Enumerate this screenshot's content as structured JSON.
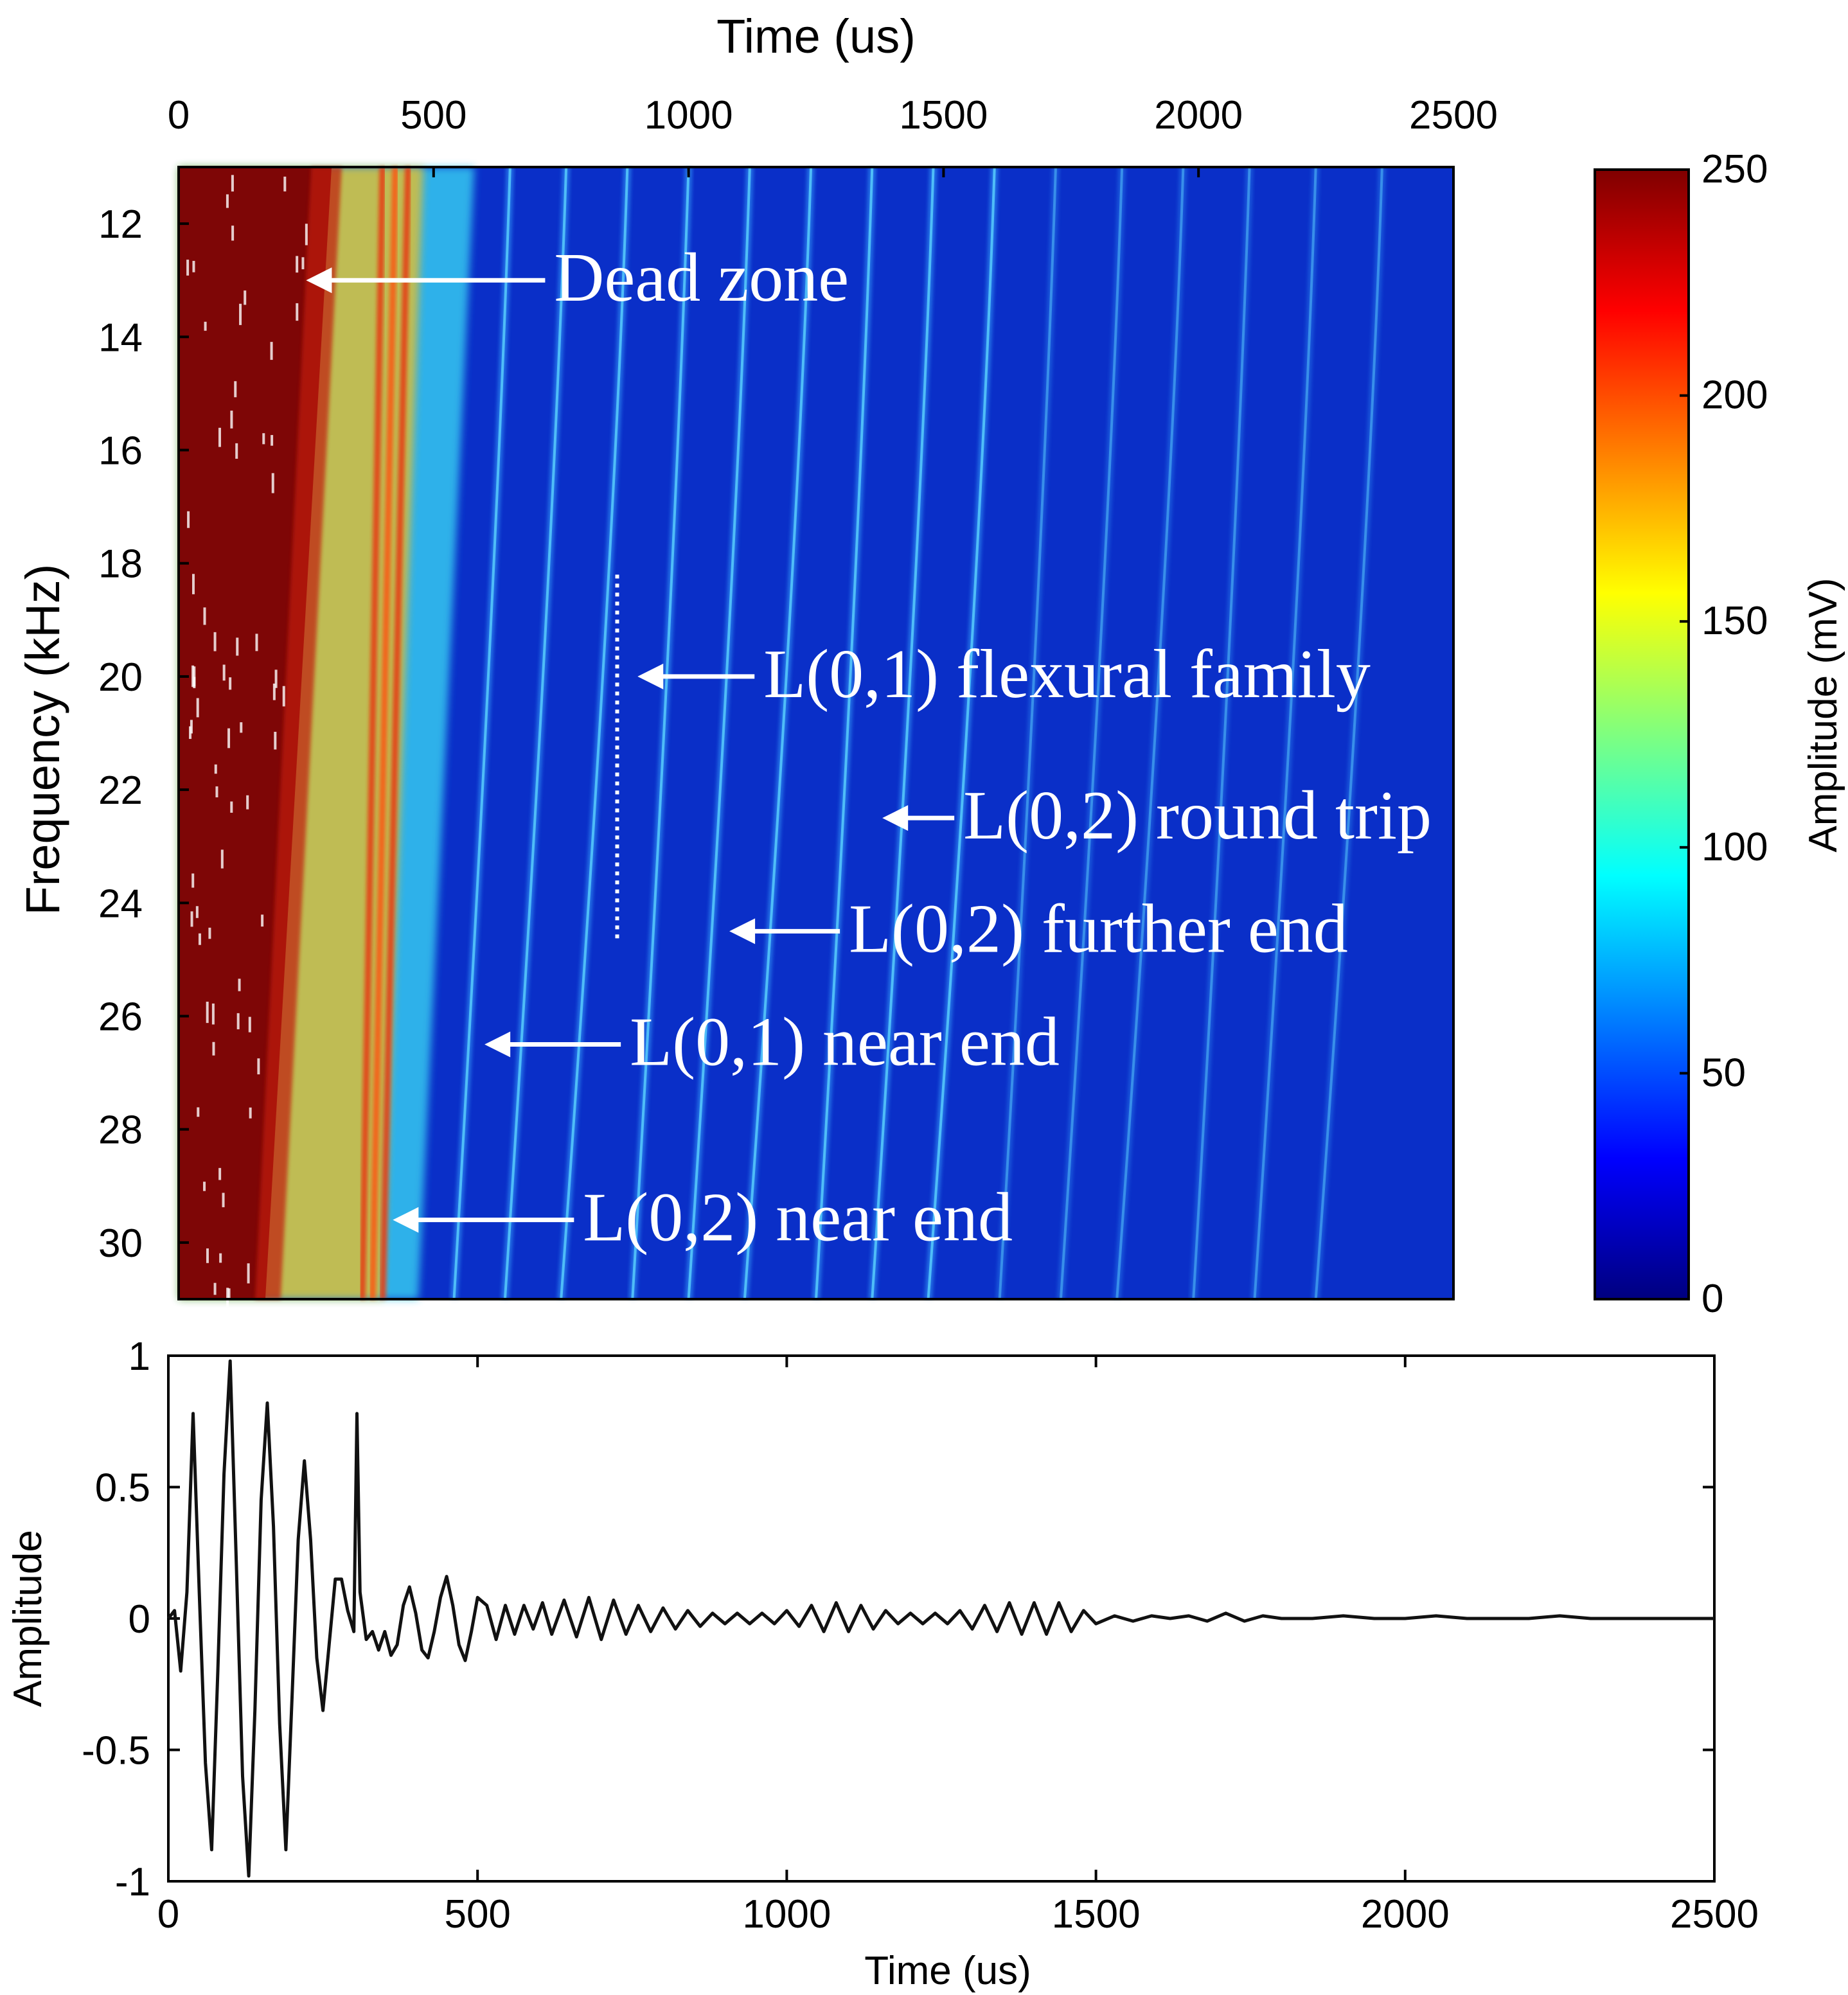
{
  "chart_data": [
    {
      "type": "heatmap",
      "title": "",
      "xlabel": "Time (us)",
      "ylabel": "Frequency (kHz)",
      "xlim": [
        0,
        2500
      ],
      "ylim": [
        11,
        31
      ],
      "x_ticks": [
        "0",
        "500",
        "1000",
        "1500",
        "2000",
        "2500"
      ],
      "y_ticks": [
        "12",
        "14",
        "16",
        "18",
        "20",
        "22",
        "24",
        "26",
        "28",
        "30"
      ],
      "colorbar": {
        "label": "Amplitude (mV)",
        "range": [
          0,
          250
        ],
        "ticks": [
          "0",
          "50",
          "100",
          "150",
          "200",
          "250"
        ],
        "colormap": [
          "#00007f",
          "#0000ff",
          "#007fff",
          "#00ffff",
          "#7fff7f",
          "#ffff00",
          "#ff7f00",
          "#ff0000",
          "#7f0000"
        ]
      },
      "features": {
        "dead_zone_end_time_us": [
          300,
          170
        ],
        "flexural_band_times_us": [
          650,
          760,
          880,
          1000,
          1120,
          1240,
          1360,
          1480,
          1600,
          1720,
          1850,
          1970,
          2100,
          2230,
          2360
        ],
        "l02_round_trip_time_us": [
          1500,
          1380
        ],
        "l02_further_end_time_us": [
          1020,
          920
        ],
        "l01_near_end_time_us": [
          500,
          430
        ],
        "l02_near_end_time_us": [
          430,
          400
        ]
      },
      "annotations": [
        {
          "text": "Dead zone",
          "arrow_to": {
            "time_us": 250,
            "freq_khz": 13
          }
        },
        {
          "text": "L(0,1) flexural family",
          "arrow_to": {
            "time_us": 900,
            "freq_khz": 20
          }
        },
        {
          "text": "L(0,2) round trip",
          "arrow_to": {
            "time_us": 1380,
            "freq_khz": 22.5
          }
        },
        {
          "text": "L(0,2) further end",
          "arrow_to": {
            "time_us": 1080,
            "freq_khz": 24.5
          }
        },
        {
          "text": "L(0,1) near end",
          "arrow_to": {
            "time_us": 600,
            "freq_khz": 26.5
          }
        },
        {
          "text": "L(0,2) near end",
          "arrow_to": {
            "time_us": 420,
            "freq_khz": 29.6
          }
        }
      ]
    },
    {
      "type": "line",
      "title": "",
      "xlabel": "Time (us)",
      "ylabel": "Amplitude",
      "xlim": [
        0,
        2500
      ],
      "ylim": [
        -1,
        1
      ],
      "x_ticks": [
        "0",
        "500",
        "1000",
        "1500",
        "2000",
        "2500"
      ],
      "y_ticks": [
        "1",
        "0.5",
        "0",
        "-0.5",
        "-1"
      ],
      "series": [
        {
          "name": "signal",
          "x": [
            0,
            10,
            20,
            30,
            40,
            50,
            60,
            70,
            80,
            90,
            100,
            110,
            120,
            130,
            140,
            150,
            160,
            170,
            180,
            190,
            200,
            210,
            220,
            230,
            240,
            250,
            260,
            270,
            280,
            290,
            300,
            305,
            310,
            320,
            330,
            340,
            350,
            360,
            370,
            380,
            390,
            400,
            410,
            420,
            430,
            440,
            450,
            460,
            470,
            480,
            490,
            500,
            515,
            530,
            545,
            560,
            575,
            590,
            605,
            620,
            640,
            660,
            680,
            700,
            720,
            740,
            760,
            780,
            800,
            820,
            840,
            860,
            880,
            900,
            920,
            940,
            960,
            980,
            1000,
            1020,
            1040,
            1060,
            1080,
            1100,
            1120,
            1140,
            1160,
            1180,
            1200,
            1220,
            1240,
            1260,
            1280,
            1300,
            1320,
            1340,
            1360,
            1380,
            1400,
            1420,
            1440,
            1460,
            1480,
            1500,
            1530,
            1560,
            1590,
            1620,
            1650,
            1680,
            1710,
            1740,
            1770,
            1800,
            1850,
            1900,
            1950,
            2000,
            2050,
            2100,
            2150,
            2200,
            2250,
            2300,
            2350,
            2400,
            2450,
            2500
          ],
          "values": [
            0.0,
            0.03,
            -0.2,
            0.1,
            0.78,
            0.1,
            -0.55,
            -0.88,
            -0.2,
            0.55,
            0.98,
            0.2,
            -0.6,
            -0.98,
            -0.35,
            0.45,
            0.82,
            0.35,
            -0.4,
            -0.88,
            -0.3,
            0.3,
            0.6,
            0.3,
            -0.15,
            -0.35,
            -0.1,
            0.15,
            0.15,
            0.03,
            -0.05,
            0.78,
            0.1,
            -0.08,
            -0.05,
            -0.12,
            -0.05,
            -0.14,
            -0.1,
            0.05,
            0.12,
            0.02,
            -0.12,
            -0.15,
            -0.05,
            0.08,
            0.16,
            0.05,
            -0.1,
            -0.16,
            -0.05,
            0.08,
            0.05,
            -0.08,
            0.05,
            -0.06,
            0.05,
            -0.04,
            0.06,
            -0.06,
            0.07,
            -0.07,
            0.08,
            -0.08,
            0.07,
            -0.06,
            0.05,
            -0.05,
            0.04,
            -0.04,
            0.03,
            -0.03,
            0.02,
            -0.02,
            0.02,
            -0.02,
            0.02,
            -0.02,
            0.03,
            -0.03,
            0.05,
            -0.05,
            0.06,
            -0.05,
            0.05,
            -0.04,
            0.03,
            -0.02,
            0.02,
            -0.02,
            0.02,
            -0.02,
            0.03,
            -0.04,
            0.05,
            -0.05,
            0.06,
            -0.06,
            0.06,
            -0.06,
            0.06,
            -0.05,
            0.03,
            -0.02,
            0.01,
            -0.01,
            0.01,
            0.0,
            0.01,
            -0.01,
            0.02,
            -0.01,
            0.01,
            0.0,
            0.0,
            0.01,
            0.0,
            0.0,
            0.01,
            0.0,
            0.0,
            0.0,
            0.01,
            0.0,
            0.0,
            0.0,
            0.0,
            0.0
          ]
        }
      ]
    }
  ]
}
